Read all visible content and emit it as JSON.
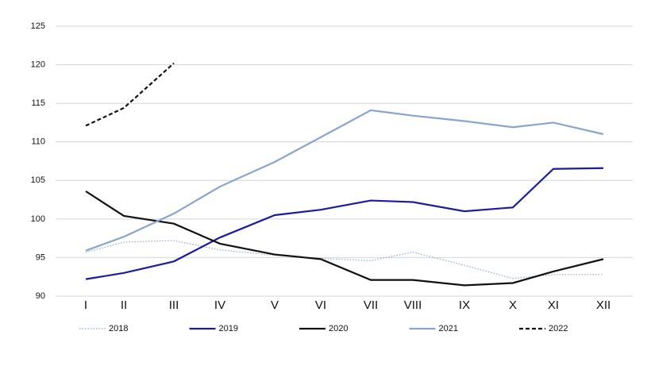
{
  "chart_data": {
    "type": "line",
    "categories": [
      "I",
      "II",
      "III",
      "IV",
      "V",
      "VI",
      "VII",
      "VIII",
      "IX",
      "X",
      "XI",
      "XII"
    ],
    "ylim": [
      90,
      125
    ],
    "yticks": [
      90,
      95,
      100,
      105,
      110,
      115,
      120,
      125
    ],
    "grid": true,
    "legend": "bottom",
    "series": [
      {
        "name": "2018",
        "color": "#8fa8c8",
        "linestyle": "dotted",
        "values": [
          95.7,
          97.0,
          97.2,
          96.0,
          95.3,
          94.9,
          94.6,
          95.7,
          94.0,
          92.3,
          92.8,
          92.8
        ]
      },
      {
        "name": "2019",
        "color": "#1c1ca0",
        "linestyle": "solid",
        "values": [
          92.2,
          93.0,
          94.5,
          97.6,
          100.5,
          101.2,
          102.4,
          102.2,
          101.0,
          101.5,
          106.5,
          106.6
        ]
      },
      {
        "name": "2020",
        "color": "#111111",
        "linestyle": "solid",
        "values": [
          103.6,
          100.4,
          99.4,
          96.8,
          95.4,
          94.8,
          92.1,
          92.1,
          91.4,
          91.7,
          93.2,
          94.8
        ]
      },
      {
        "name": "2021",
        "color": "#87a6cf",
        "linestyle": "solid",
        "values": [
          95.9,
          97.7,
          100.7,
          104.2,
          107.4,
          110.6,
          114.1,
          113.4,
          112.7,
          111.9,
          112.5,
          111.0
        ]
      },
      {
        "name": "2022",
        "color": "#111111",
        "linestyle": "dashed",
        "values": [
          112.1,
          114.4,
          120.2,
          null,
          null,
          null,
          null,
          null,
          null,
          null,
          null,
          null
        ]
      }
    ]
  }
}
